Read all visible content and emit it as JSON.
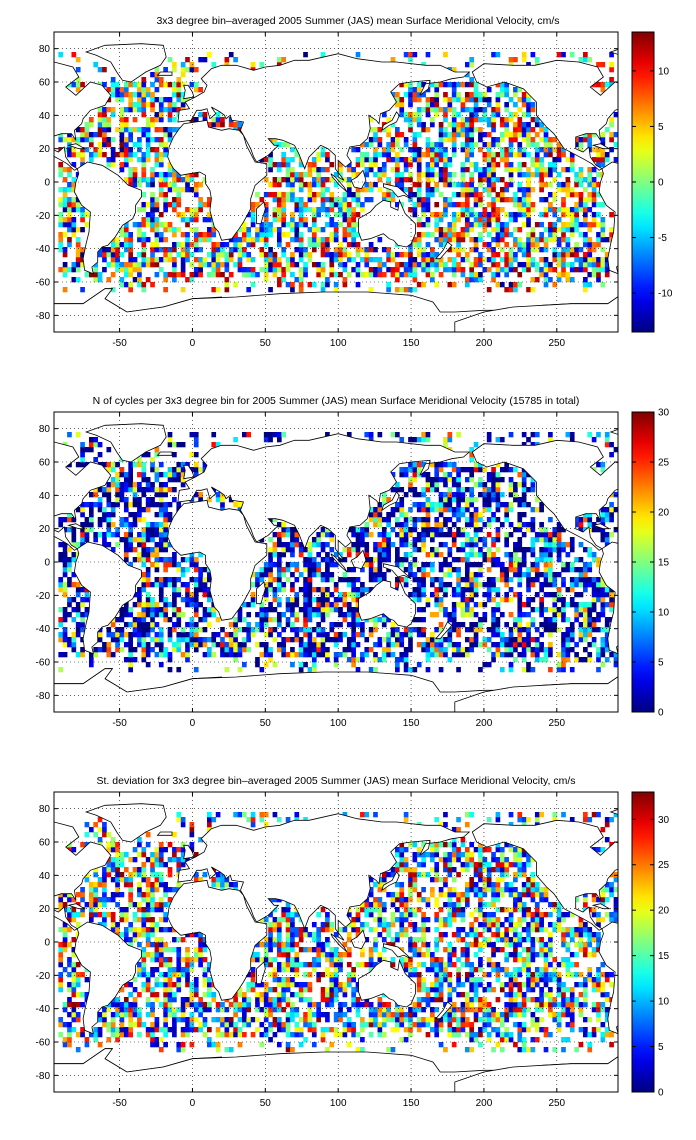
{
  "figure": {
    "colors": {
      "frame": "#000000",
      "grid": "#000000",
      "coast": "#000000",
      "background": "#ffffff",
      "colormap": "jet"
    }
  },
  "chart_data": [
    {
      "type": "heatmap",
      "title": "3x3 degree bin–averaged 2005 Summer (JAS) mean Surface Meridional Velocity, cm/s",
      "xlabel": "",
      "ylabel": "",
      "xlim": [
        -95,
        292
      ],
      "ylim": [
        -90,
        90
      ],
      "xticks": [
        -50,
        0,
        50,
        100,
        150,
        200,
        250
      ],
      "yticks": [
        -80,
        -60,
        -40,
        -20,
        0,
        20,
        40,
        60,
        80
      ],
      "grid": true,
      "colorbar": {
        "clim": [
          -13.5,
          13.5
        ],
        "ticks": [
          -10,
          -5,
          0,
          5,
          10
        ]
      },
      "bin_size_deg": 3,
      "value_hint": "mixed"
    },
    {
      "type": "heatmap",
      "title": "N of cycles per 3x3 degree bin for 2005 Summer (JAS) mean Surface Meridional Velocity (15785 in total)",
      "xlabel": "",
      "ylabel": "",
      "xlim": [
        -95,
        292
      ],
      "ylim": [
        -90,
        90
      ],
      "xticks": [
        -50,
        0,
        50,
        100,
        150,
        200,
        250
      ],
      "yticks": [
        -80,
        -60,
        -40,
        -20,
        0,
        20,
        40,
        60,
        80
      ],
      "grid": true,
      "colorbar": {
        "clim": [
          0,
          30
        ],
        "ticks": [
          0,
          5,
          10,
          15,
          20,
          25,
          30
        ]
      },
      "bin_size_deg": 3,
      "total": 15785,
      "value_hint": "low"
    },
    {
      "type": "heatmap",
      "title": "St. deviation for 3x3 degree bin–averaged 2005 Summer (JAS) mean Surface Meridional Velocity, cm/s",
      "xlabel": "",
      "ylabel": "",
      "xlim": [
        -95,
        292
      ],
      "ylim": [
        -90,
        90
      ],
      "xticks": [
        -50,
        0,
        50,
        100,
        150,
        200,
        250
      ],
      "yticks": [
        -80,
        -60,
        -40,
        -20,
        0,
        20,
        40,
        60,
        80
      ],
      "grid": true,
      "colorbar": {
        "clim": [
          0,
          33
        ],
        "ticks": [
          0,
          5,
          10,
          15,
          20,
          25,
          30
        ]
      },
      "bin_size_deg": 3,
      "value_hint": "medium"
    }
  ]
}
